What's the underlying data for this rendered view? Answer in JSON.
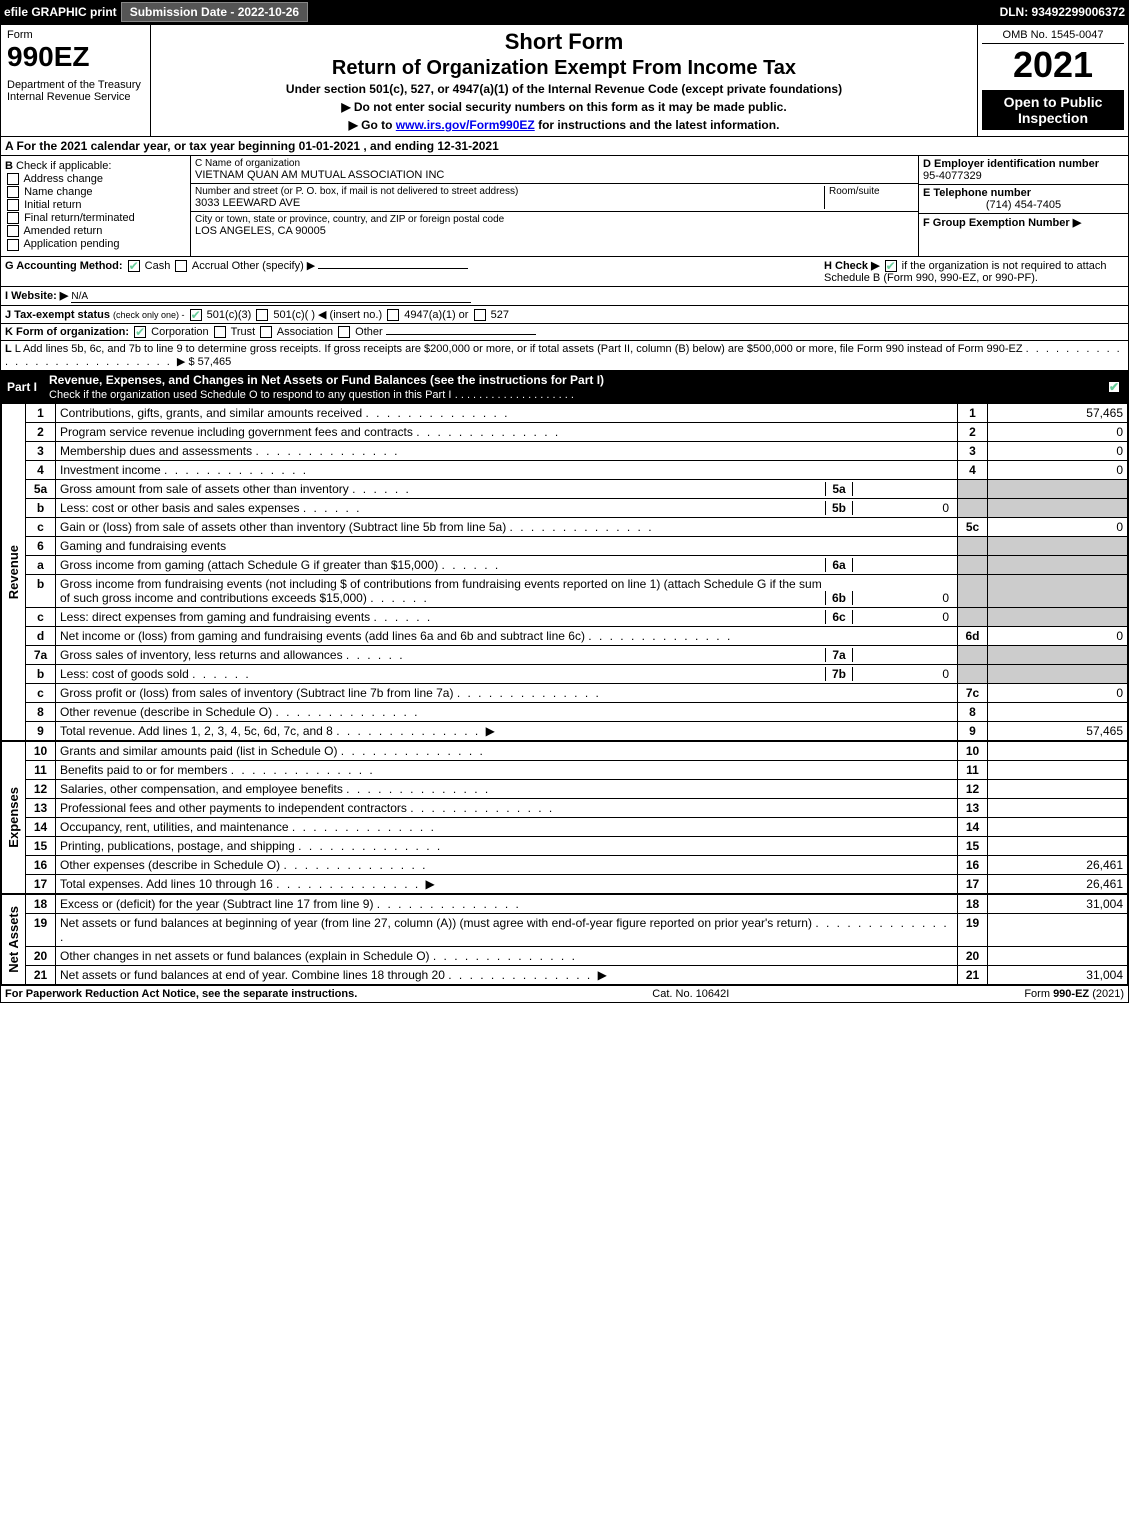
{
  "topbar": {
    "efile": "efile GRAPHIC print",
    "submission_btn": "Submission Date - 2022-10-26",
    "dln": "DLN: 93492299006372"
  },
  "header": {
    "form": "Form",
    "number": "990EZ",
    "dept": "Department of the Treasury\nInternal Revenue Service",
    "short": "Short Form",
    "title": "Return of Organization Exempt From Income Tax",
    "sub": "Under section 501(c), 527, or 4947(a)(1) of the Internal Revenue Code (except private foundations)",
    "inst1": "▶ Do not enter social security numbers on this form as it may be made public.",
    "inst2_pre": "▶ Go to ",
    "inst2_link": "www.irs.gov/Form990EZ",
    "inst2_post": " for instructions and the latest information.",
    "omb": "OMB No. 1545-0047",
    "year": "2021",
    "open": "Open to Public Inspection"
  },
  "lineA": "A  For the 2021 calendar year, or tax year beginning 01-01-2021 , and ending 12-31-2021",
  "colB": {
    "label": "B",
    "hint": "Check if applicable:",
    "opts": [
      "Address change",
      "Name change",
      "Initial return",
      "Final return/terminated",
      "Amended return",
      "Application pending"
    ]
  },
  "colC": {
    "name_lbl": "C Name of organization",
    "name": "VIETNAM QUAN AM MUTUAL ASSOCIATION INC",
    "addr_lbl": "Number and street (or P. O. box, if mail is not delivered to street address)",
    "room_lbl": "Room/suite",
    "addr": "3033 LEEWARD AVE",
    "city_lbl": "City or town, state or province, country, and ZIP or foreign postal code",
    "city": "LOS ANGELES, CA   90005"
  },
  "colD": {
    "ein_lbl": "D Employer identification number",
    "ein": "95-4077329",
    "tel_lbl": "E Telephone number",
    "tel": "(714) 454-7405",
    "grp_lbl": "F Group Exemption Number   ▶"
  },
  "lineG": {
    "label": "G Accounting Method:",
    "cash": "Cash",
    "accrual": "Accrual",
    "other": "Other (specify) ▶"
  },
  "lineH": {
    "text": "H   Check ▶",
    "rest": "if the organization is not required to attach Schedule B (Form 990, 990-EZ, or 990-PF)."
  },
  "lineI": {
    "label": "I Website: ▶",
    "val": "N/A"
  },
  "lineJ": {
    "label": "J Tax-exempt status",
    "hint": "(check only one) -",
    "o1": "501(c)(3)",
    "o2": "501(c)(  ) ◀ (insert no.)",
    "o3": "4947(a)(1) or",
    "o4": "527"
  },
  "lineK": {
    "label": "K Form of organization:",
    "opts": [
      "Corporation",
      "Trust",
      "Association",
      "Other"
    ]
  },
  "lineL": {
    "text": "L Add lines 5b, 6c, and 7b to line 9 to determine gross receipts. If gross receipts are $200,000 or more, or if total assets (Part II, column (B) below) are $500,000 or more, file Form 990 instead of Form 990-EZ",
    "val": "▶ $ 57,465"
  },
  "part1": {
    "label": "Part I",
    "title": "Revenue, Expenses, and Changes in Net Assets or Fund Balances (see the instructions for Part I)",
    "sub": "Check if the organization used Schedule O to respond to any question in this Part I"
  },
  "sections": {
    "revenue": "Revenue",
    "expenses": "Expenses",
    "netassets": "Net Assets"
  },
  "rows": [
    {
      "n": "1",
      "t": "Contributions, gifts, grants, and similar amounts received",
      "r": "1",
      "v": "57,465"
    },
    {
      "n": "2",
      "t": "Program service revenue including government fees and contracts",
      "r": "2",
      "v": "0"
    },
    {
      "n": "3",
      "t": "Membership dues and assessments",
      "r": "3",
      "v": "0"
    },
    {
      "n": "4",
      "t": "Investment income",
      "r": "4",
      "v": "0"
    },
    {
      "n": "5a",
      "t": "Gross amount from sale of assets other than inventory",
      "sl": "5a",
      "sv": ""
    },
    {
      "n": "b",
      "t": "Less: cost or other basis and sales expenses",
      "sl": "5b",
      "sv": "0"
    },
    {
      "n": "c",
      "t": "Gain or (loss) from sale of assets other than inventory (Subtract line 5b from line 5a)",
      "r": "5c",
      "v": "0"
    },
    {
      "n": "6",
      "t": "Gaming and fundraising events"
    },
    {
      "n": "a",
      "t": "Gross income from gaming (attach Schedule G if greater than $15,000)",
      "sl": "6a",
      "sv": ""
    },
    {
      "n": "b",
      "t": "Gross income from fundraising events (not including $                       of contributions from fundraising events reported on line 1) (attach Schedule G if the sum of such gross income and contributions exceeds $15,000)",
      "sl": "6b",
      "sv": "0"
    },
    {
      "n": "c",
      "t": "Less: direct expenses from gaming and fundraising events",
      "sl": "6c",
      "sv": "0"
    },
    {
      "n": "d",
      "t": "Net income or (loss) from gaming and fundraising events (add lines 6a and 6b and subtract line 6c)",
      "r": "6d",
      "v": "0"
    },
    {
      "n": "7a",
      "t": "Gross sales of inventory, less returns and allowances",
      "sl": "7a",
      "sv": ""
    },
    {
      "n": "b",
      "t": "Less: cost of goods sold",
      "sl": "7b",
      "sv": "0"
    },
    {
      "n": "c",
      "t": "Gross profit or (loss) from sales of inventory (Subtract line 7b from line 7a)",
      "r": "7c",
      "v": "0"
    },
    {
      "n": "8",
      "t": "Other revenue (describe in Schedule O)",
      "r": "8",
      "v": ""
    },
    {
      "n": "9",
      "t": "Total revenue. Add lines 1, 2, 3, 4, 5c, 6d, 7c, and 8",
      "r": "9",
      "v": "57,465",
      "bold": true,
      "arrow": true
    }
  ],
  "exp_rows": [
    {
      "n": "10",
      "t": "Grants and similar amounts paid (list in Schedule O)",
      "r": "10",
      "v": ""
    },
    {
      "n": "11",
      "t": "Benefits paid to or for members",
      "r": "11",
      "v": ""
    },
    {
      "n": "12",
      "t": "Salaries, other compensation, and employee benefits",
      "r": "12",
      "v": ""
    },
    {
      "n": "13",
      "t": "Professional fees and other payments to independent contractors",
      "r": "13",
      "v": ""
    },
    {
      "n": "14",
      "t": "Occupancy, rent, utilities, and maintenance",
      "r": "14",
      "v": ""
    },
    {
      "n": "15",
      "t": "Printing, publications, postage, and shipping",
      "r": "15",
      "v": ""
    },
    {
      "n": "16",
      "t": "Other expenses (describe in Schedule O)",
      "r": "16",
      "v": "26,461"
    },
    {
      "n": "17",
      "t": "Total expenses. Add lines 10 through 16",
      "r": "17",
      "v": "26,461",
      "bold": true,
      "arrow": true
    }
  ],
  "net_rows": [
    {
      "n": "18",
      "t": "Excess or (deficit) for the year (Subtract line 17 from line 9)",
      "r": "18",
      "v": "31,004"
    },
    {
      "n": "19",
      "t": "Net assets or fund balances at beginning of year (from line 27, column (A)) (must agree with end-of-year figure reported on prior year's return)",
      "r": "19",
      "v": ""
    },
    {
      "n": "20",
      "t": "Other changes in net assets or fund balances (explain in Schedule O)",
      "r": "20",
      "v": ""
    },
    {
      "n": "21",
      "t": "Net assets or fund balances at end of year. Combine lines 18 through 20",
      "r": "21",
      "v": "31,004",
      "arrow": true
    }
  ],
  "footer": {
    "left": "For Paperwork Reduction Act Notice, see the separate instructions.",
    "mid": "Cat. No. 10642I",
    "right_pre": "Form ",
    "right_form": "990-EZ",
    "right_post": " (2021)"
  }
}
